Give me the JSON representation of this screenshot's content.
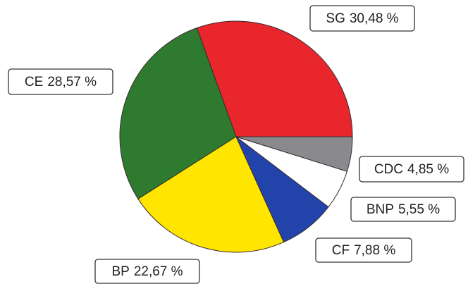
{
  "chart_data": {
    "type": "pie",
    "categories": [
      "SG",
      "CE",
      "BP",
      "CF",
      "BNP",
      "CDC"
    ],
    "values": [
      30.48,
      28.57,
      22.67,
      7.88,
      5.55,
      4.85
    ],
    "value_labels": [
      "30,48 %",
      "28,57 %",
      "22,67 %",
      "7,88 %",
      "5,55 %",
      "4,85 %"
    ],
    "colors": [
      "#e8262c",
      "#2e7a2e",
      "#ffe600",
      "#2244aa",
      "#ffffff",
      "#8a8a8e"
    ]
  }
}
